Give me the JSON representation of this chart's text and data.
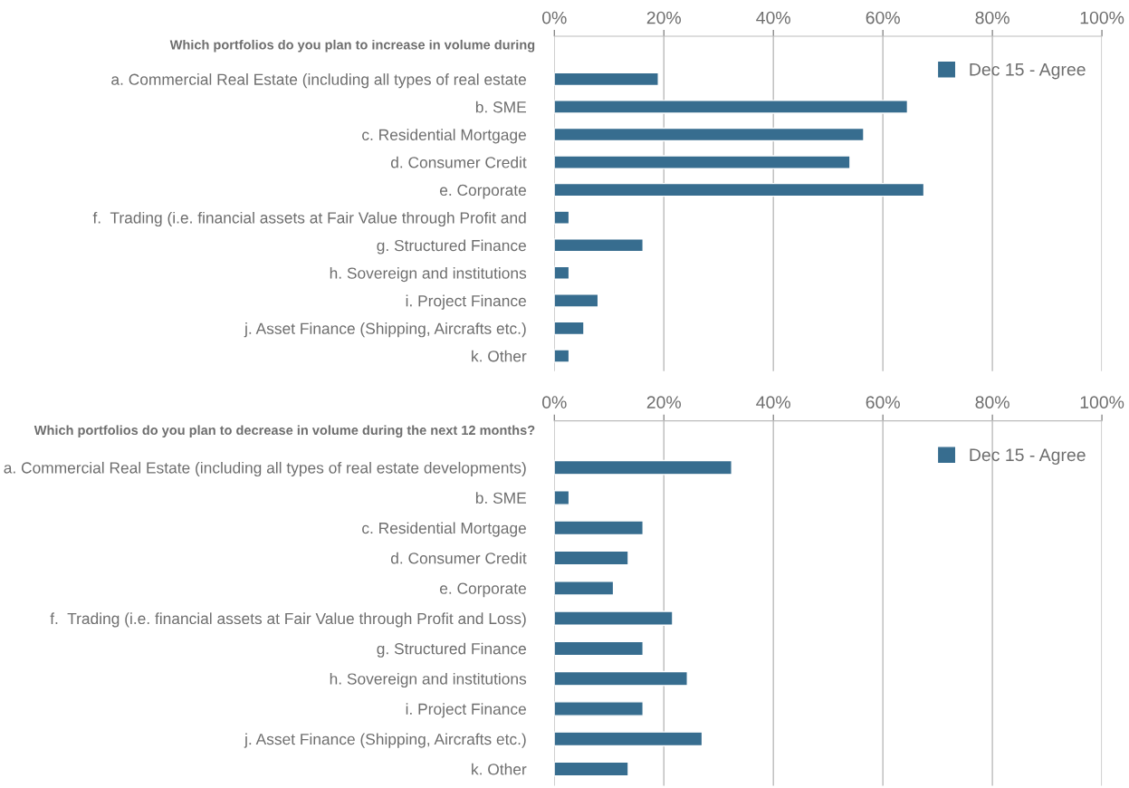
{
  "chart_data": [
    {
      "type": "bar",
      "orientation": "horizontal",
      "title": "Which portfolios do you plan to increase in volume during",
      "categories": [
        "a. Commercial Real Estate (including all types of real estate",
        "b. SME",
        "c. Residential Mortgage",
        "d. Consumer Credit",
        "e. Corporate",
        "f.  Trading (i.e. financial assets at Fair Value through Profit and",
        "g. Structured Finance",
        "h. Sovereign and institutions",
        "i. Project Finance",
        "j. Asset Finance (Shipping, Aircrafts etc.)",
        "k. Other"
      ],
      "series": [
        {
          "name": "Dec 15 - Agree",
          "color": "#376d8f",
          "values": [
            19,
            64.5,
            56.5,
            54,
            67.5,
            2.7,
            16.2,
            2.7,
            8,
            5.4,
            2.7
          ]
        }
      ],
      "xlim": [
        0,
        100
      ],
      "xticks": [
        {
          "value": 0,
          "label": "0%"
        },
        {
          "value": 20,
          "label": "20%"
        },
        {
          "value": 40,
          "label": "40%"
        },
        {
          "value": 60,
          "label": "60%"
        },
        {
          "value": 80,
          "label": "80%"
        },
        {
          "value": 100,
          "label": "100%"
        }
      ],
      "grid": "x",
      "legend": "top right"
    },
    {
      "type": "bar",
      "orientation": "horizontal",
      "title": "Which portfolios do you plan to decrease in volume during the next 12 months?",
      "categories": [
        "a. Commercial Real Estate (including all types of real estate developments)",
        "b. SME",
        "c. Residential Mortgage",
        "d. Consumer Credit",
        "e. Corporate",
        "f.  Trading (i.e. financial assets at Fair Value through Profit and Loss)",
        "g. Structured Finance",
        "h. Sovereign and institutions",
        "i. Project Finance",
        "j. Asset Finance (Shipping, Aircrafts etc.)",
        "k. Other"
      ],
      "series": [
        {
          "name": "Dec 15 - Agree",
          "color": "#376d8f",
          "values": [
            32.4,
            2.7,
            16.2,
            13.5,
            10.8,
            21.6,
            16.2,
            24.3,
            16.2,
            27,
            13.5
          ]
        }
      ],
      "xlim": [
        0,
        100
      ],
      "xticks": [
        {
          "value": 0,
          "label": "0%"
        },
        {
          "value": 20,
          "label": "20%"
        },
        {
          "value": 40,
          "label": "40%"
        },
        {
          "value": 60,
          "label": "60%"
        },
        {
          "value": 80,
          "label": "80%"
        },
        {
          "value": 100,
          "label": "100%"
        }
      ],
      "grid": "x",
      "legend": "top right"
    }
  ]
}
